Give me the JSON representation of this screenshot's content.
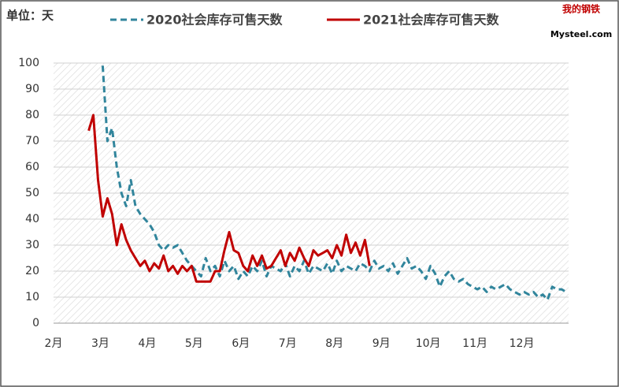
{
  "chart_data": {
    "type": "line",
    "unit_label": "单位：天",
    "logo": {
      "top": "我的钢铁",
      "bottom": "Mysteel.com"
    },
    "categories": [
      "2月",
      null,
      null,
      null,
      null,
      null,
      null,
      null,
      null,
      null,
      "3月",
      null,
      null,
      null,
      null,
      null,
      null,
      null,
      null,
      null,
      "4月",
      null,
      null,
      null,
      null,
      null,
      null,
      null,
      null,
      null,
      "5月",
      null,
      null,
      null,
      null,
      null,
      null,
      null,
      null,
      null,
      "6月",
      null,
      null,
      null,
      null,
      null,
      null,
      null,
      null,
      null,
      "7月",
      null,
      null,
      null,
      null,
      null,
      null,
      null,
      null,
      null,
      "8月",
      null,
      null,
      null,
      null,
      null,
      null,
      null,
      null,
      null,
      "9月",
      null,
      null,
      null,
      null,
      null,
      null,
      null,
      null,
      null,
      "10月",
      null,
      null,
      null,
      null,
      null,
      null,
      null,
      null,
      null,
      "11月",
      null,
      null,
      null,
      null,
      null,
      null,
      null,
      null,
      null,
      "12月",
      null,
      null,
      null,
      null,
      null,
      null,
      null,
      null,
      null
    ],
    "series": [
      {
        "name": "2020社会库存可售天数",
        "color": "#31859c",
        "dashed": true,
        "values": [
          null,
          null,
          null,
          null,
          null,
          null,
          null,
          null,
          null,
          null,
          99,
          70,
          75,
          60,
          50,
          45,
          55,
          45,
          42,
          40,
          38,
          35,
          30,
          28,
          30,
          29,
          30,
          27,
          24,
          22,
          20,
          18,
          25,
          20,
          22,
          18,
          24,
          20,
          22,
          17,
          20,
          18,
          22,
          20,
          24,
          18,
          22,
          21,
          20,
          23,
          18,
          22,
          20,
          24,
          19,
          22,
          21,
          20,
          23,
          19,
          24,
          20,
          22,
          21,
          20,
          23,
          22,
          20,
          24,
          21,
          22,
          20,
          23,
          19,
          22,
          25,
          21,
          22,
          20,
          17,
          22,
          19,
          14,
          18,
          20,
          17,
          16,
          17,
          15,
          14,
          13,
          14,
          12,
          14,
          13,
          14,
          15,
          13,
          12,
          11,
          12,
          11,
          12,
          10,
          11,
          9,
          14,
          13,
          13,
          12
        ]
      },
      {
        "name": "2021社会库存可售天数",
        "color": "#c00000",
        "dashed": false,
        "values": [
          null,
          null,
          null,
          null,
          null,
          null,
          null,
          74,
          80,
          55,
          41,
          48,
          42,
          30,
          38,
          32,
          28,
          25,
          22,
          24,
          20,
          23,
          21,
          26,
          20,
          22,
          19,
          22,
          20,
          22,
          16,
          16,
          16,
          16,
          20,
          20,
          28,
          35,
          28,
          27,
          22,
          20,
          26,
          22,
          26,
          21,
          22,
          25,
          28,
          22,
          27,
          24,
          29,
          25,
          22,
          28,
          26,
          27,
          28,
          25,
          30,
          26,
          34,
          27,
          31,
          26,
          32,
          22,
          null,
          null,
          null,
          null,
          null,
          null,
          null,
          null,
          null,
          null,
          null,
          null,
          null,
          null,
          null,
          null,
          null,
          null,
          null,
          null,
          null,
          null,
          null,
          null,
          null,
          null,
          null,
          null,
          null,
          null,
          null,
          null,
          null,
          null,
          null,
          null,
          null,
          null,
          null,
          null,
          null,
          null
        ]
      }
    ],
    "ylim": [
      0,
      100
    ],
    "yticks": [
      0,
      10,
      20,
      30,
      40,
      50,
      60,
      70,
      80,
      90,
      100
    ],
    "grid": true
  }
}
